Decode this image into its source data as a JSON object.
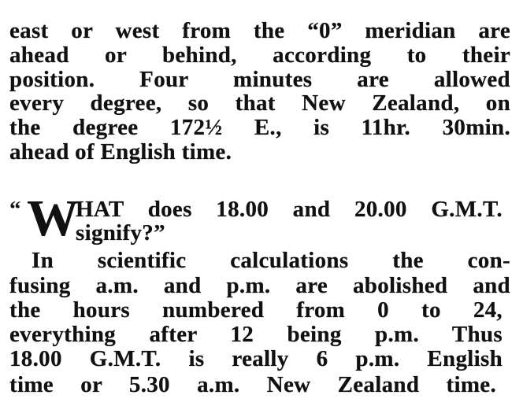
{
  "paragraph1": [
    "east or west from the “0” meridian are",
    "ahead or behind, according to their",
    "position. Four minutes are allowed",
    "every degree, so that New Zealand, on",
    "the degree 172½ E., is 11hr. 30min.",
    "ahead of English time."
  ],
  "question": {
    "open_quote": "“",
    "drop_cap": "W",
    "line1": "HAT does 18.00 and 20.00 G.M.T.",
    "line2": "signify?”"
  },
  "paragraph2": [
    "In scientific calculations the con-",
    "fusing a.m. and p.m. are abolished and",
    "the hours numbered from 0 to 24,",
    "everything after 12 being p.m. Thus",
    "18.00 G.M.T. is really 6 p.m. English",
    "time or 5.30 a.m. New Zealand time."
  ]
}
